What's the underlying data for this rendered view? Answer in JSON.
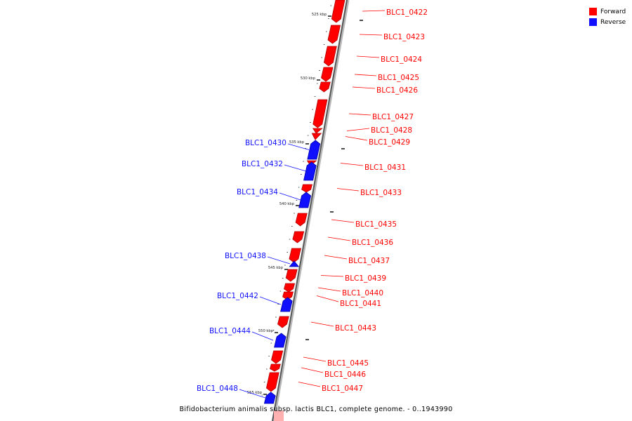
{
  "legend": {
    "forward_label": "Forward",
    "reverse_label": "Reverse",
    "forward_color": "#ff0000",
    "reverse_color": "#1010ff"
  },
  "caption": "Bifidobacterium animalis subsp. lactis BLC1, complete genome. - 0..1943990",
  "scale_labels": [
    "525 kbp",
    "530 kbp",
    "535 kbp",
    "540 kbp",
    "545 kbp",
    "550 kbp",
    "555 kbp"
  ],
  "genes": [
    {
      "id": "BLC1_0422",
      "strand": "forward"
    },
    {
      "id": "BLC1_0423",
      "strand": "forward"
    },
    {
      "id": "BLC1_0424",
      "strand": "forward"
    },
    {
      "id": "BLC1_0425",
      "strand": "forward"
    },
    {
      "id": "BLC1_0426",
      "strand": "forward"
    },
    {
      "id": "BLC1_0427",
      "strand": "forward"
    },
    {
      "id": "BLC1_0428",
      "strand": "forward"
    },
    {
      "id": "BLC1_0429",
      "strand": "forward"
    },
    {
      "id": "BLC1_0430",
      "strand": "reverse"
    },
    {
      "id": "BLC1_0431",
      "strand": "forward"
    },
    {
      "id": "BLC1_0432",
      "strand": "reverse"
    },
    {
      "id": "BLC1_0433",
      "strand": "forward"
    },
    {
      "id": "BLC1_0434",
      "strand": "reverse"
    },
    {
      "id": "BLC1_0435",
      "strand": "forward"
    },
    {
      "id": "BLC1_0436",
      "strand": "forward"
    },
    {
      "id": "BLC1_0437",
      "strand": "forward"
    },
    {
      "id": "BLC1_0438",
      "strand": "reverse"
    },
    {
      "id": "BLC1_0439",
      "strand": "forward"
    },
    {
      "id": "BLC1_0440",
      "strand": "forward"
    },
    {
      "id": "BLC1_0441",
      "strand": "forward"
    },
    {
      "id": "BLC1_0442",
      "strand": "reverse"
    },
    {
      "id": "BLC1_0443",
      "strand": "forward"
    },
    {
      "id": "BLC1_0444",
      "strand": "reverse"
    },
    {
      "id": "BLC1_0445",
      "strand": "forward"
    },
    {
      "id": "BLC1_0446",
      "strand": "forward"
    },
    {
      "id": "BLC1_0447",
      "strand": "forward"
    },
    {
      "id": "BLC1_0448",
      "strand": "reverse"
    }
  ]
}
